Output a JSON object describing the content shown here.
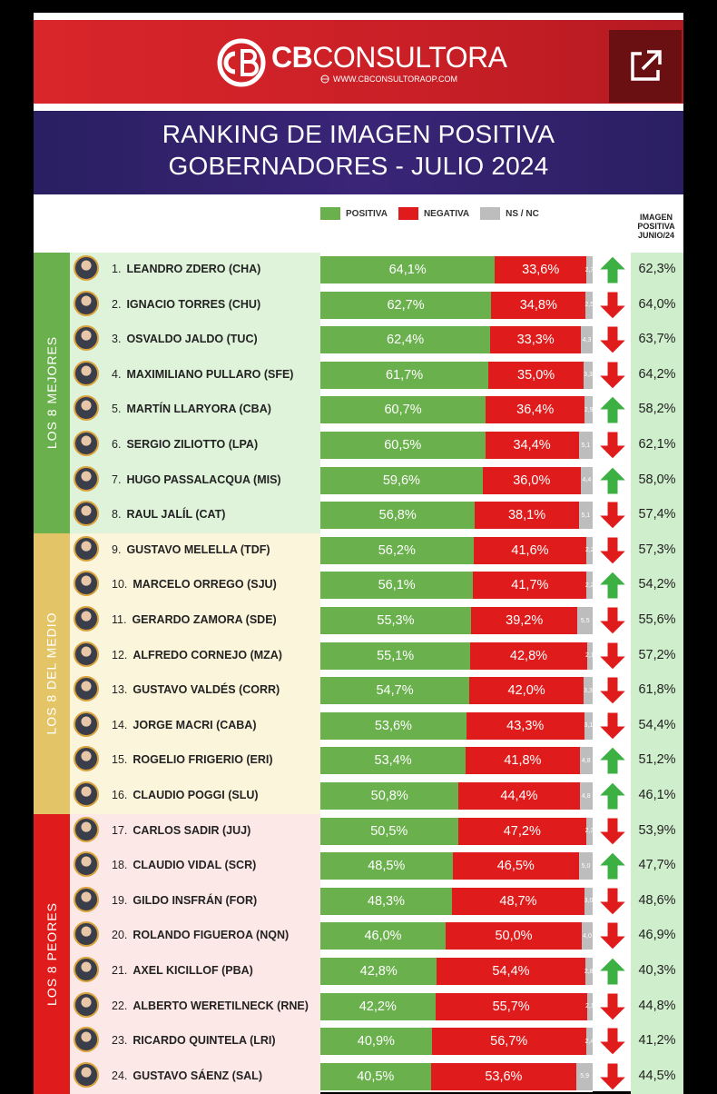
{
  "header": {
    "brand_bold": "CB",
    "brand_light": "CONSULTORA",
    "url": "WWW.CBCONSULTORAOP.COM"
  },
  "title": {
    "line1": "RANKING DE IMAGEN POSITIVA",
    "line2": "GOBERNADORES - JULIO 2024"
  },
  "legend": {
    "positive": "POSITIVA",
    "negative": "NEGATIVA",
    "nsnc": "NS / NC"
  },
  "junio_header": {
    "l1": "IMAGEN",
    "l2": "POSITIVA",
    "l3": "JUNIO/24"
  },
  "groups": [
    {
      "label": "LOS 8 MEJORES",
      "color": "#6ab04c",
      "bg": "#dff3da"
    },
    {
      "label": "LOS 8 DEL MEDIO",
      "color": "#e3c567",
      "bg": "#fbf5dc"
    },
    {
      "label": "LOS 8 PEORES",
      "color": "#e01b1b",
      "bg": "#fde8e8"
    }
  ],
  "colors": {
    "positive": "#6ab04c",
    "negative": "#e01b1b",
    "nsnc": "#bdbdbd",
    "arrow_up": "#3cb043",
    "arrow_down": "#e01b1b"
  },
  "chart_data": {
    "type": "bar",
    "title": "RANKING DE IMAGEN POSITIVA GOBERNADORES - JULIO 2024",
    "categories": [
      "LEANDRO ZDERO (CHA)",
      "IGNACIO TORRES (CHU)",
      "OSVALDO JALDO (TUC)",
      "MAXIMILIANO PULLARO (SFE)",
      "MARTÍN LLARYORA (CBA)",
      "SERGIO ZILIOTTO (LPA)",
      "HUGO PASSALACQUA (MIS)",
      "RAUL JALÍL (CAT)",
      "GUSTAVO MELELLA (TDF)",
      "MARCELO ORREGO (SJU)",
      "GERARDO ZAMORA (SDE)",
      "ALFREDO CORNEJO (MZA)",
      "GUSTAVO VALDÉS (CORR)",
      "JORGE MACRI (CABA)",
      "ROGELIO FRIGERIO (ERI)",
      "CLAUDIO POGGI (SLU)",
      "CARLOS SADIR (JUJ)",
      "CLAUDIO VIDAL (SCR)",
      "GILDO INSFRÁN (FOR)",
      "ROLANDO FIGUEROA (NQN)",
      "AXEL KICILLOF (PBA)",
      "ALBERTO WERETILNECK (RNE)",
      "RICARDO QUINTELA (LRI)",
      "GUSTAVO SÁENZ (SAL)"
    ],
    "series": [
      {
        "name": "POSITIVA",
        "values": [
          64.1,
          62.7,
          62.4,
          61.7,
          60.7,
          60.5,
          59.6,
          56.8,
          56.2,
          56.1,
          55.3,
          55.1,
          54.7,
          53.6,
          53.4,
          50.8,
          50.5,
          48.5,
          48.3,
          46.0,
          42.8,
          42.2,
          40.9,
          40.5
        ]
      },
      {
        "name": "NEGATIVA",
        "values": [
          33.6,
          34.8,
          33.3,
          35.0,
          36.4,
          34.4,
          36.0,
          38.1,
          41.6,
          41.7,
          39.2,
          42.8,
          42.0,
          43.3,
          41.8,
          44.4,
          47.2,
          46.5,
          48.7,
          50.0,
          54.4,
          55.7,
          56.7,
          53.6
        ]
      },
      {
        "name": "NS / NC",
        "values": [
          2.3,
          2.5,
          4.3,
          3.3,
          2.9,
          5.1,
          4.4,
          5.1,
          2.2,
          2.2,
          5.5,
          2.1,
          3.3,
          3.1,
          4.8,
          4.8,
          2.3,
          5.0,
          3.0,
          4.0,
          2.8,
          2.1,
          2.4,
          5.9
        ]
      },
      {
        "name": "IMAGEN POSITIVA JUNIO/24",
        "values": [
          62.3,
          64.0,
          63.7,
          64.2,
          58.2,
          62.1,
          58.0,
          57.4,
          57.3,
          54.2,
          55.6,
          57.2,
          61.8,
          54.4,
          51.2,
          46.1,
          53.9,
          47.7,
          48.6,
          46.9,
          40.3,
          44.8,
          41.2,
          44.5
        ]
      }
    ],
    "trend": [
      "up",
      "down",
      "down",
      "down",
      "up",
      "down",
      "up",
      "down",
      "down",
      "up",
      "down",
      "down",
      "down",
      "down",
      "up",
      "up",
      "down",
      "up",
      "down",
      "down",
      "up",
      "down",
      "down",
      "down"
    ],
    "positive_labels": [
      "64,1%",
      "62,7%",
      "62,4%",
      "61,7%",
      "60,7%",
      "60,5%",
      "59,6%",
      "56,8%",
      "56,2%",
      "56,1%",
      "55,3%",
      "55,1%",
      "54,7%",
      "53,6%",
      "53,4%",
      "50,8%",
      "50,5%",
      "48,5%",
      "48,3%",
      "46,0%",
      "42,8%",
      "42,2%",
      "40,9%",
      "40,5%"
    ],
    "negative_labels": [
      "33,6%",
      "34,8%",
      "33,3%",
      "35,0%",
      "36,4%",
      "34,4%",
      "36,0%",
      "38,1%",
      "41,6%",
      "41,7%",
      "39,2%",
      "42,8%",
      "42,0%",
      "43,3%",
      "41,8%",
      "44,4%",
      "47,2%",
      "46,5%",
      "48,7%",
      "50,0%",
      "54,4%",
      "55,7%",
      "56,7%",
      "53,6%"
    ],
    "nsnc_labels": [
      "2,3",
      "2,5",
      "4,3",
      "3,3",
      "2,9",
      "5,1",
      "4,4",
      "5,1",
      "2,2",
      "2,2",
      "5,5",
      "2,1",
      "3,3",
      "3,1",
      "4,8",
      "4,8",
      "2,3",
      "5,0",
      "3,0",
      "4,0",
      "2,8",
      "2,1",
      "2,4",
      "5,9"
    ],
    "junio_labels": [
      "62,3%",
      "64,0%",
      "63,7%",
      "64,2%",
      "58,2%",
      "62,1%",
      "58,0%",
      "57,4%",
      "57,3%",
      "54,2%",
      "55,6%",
      "57,2%",
      "61,8%",
      "54,4%",
      "51,2%",
      "46,1%",
      "53,9%",
      "47,7%",
      "48,6%",
      "46,9%",
      "40,3%",
      "44,8%",
      "41,2%",
      "44,5%"
    ]
  }
}
